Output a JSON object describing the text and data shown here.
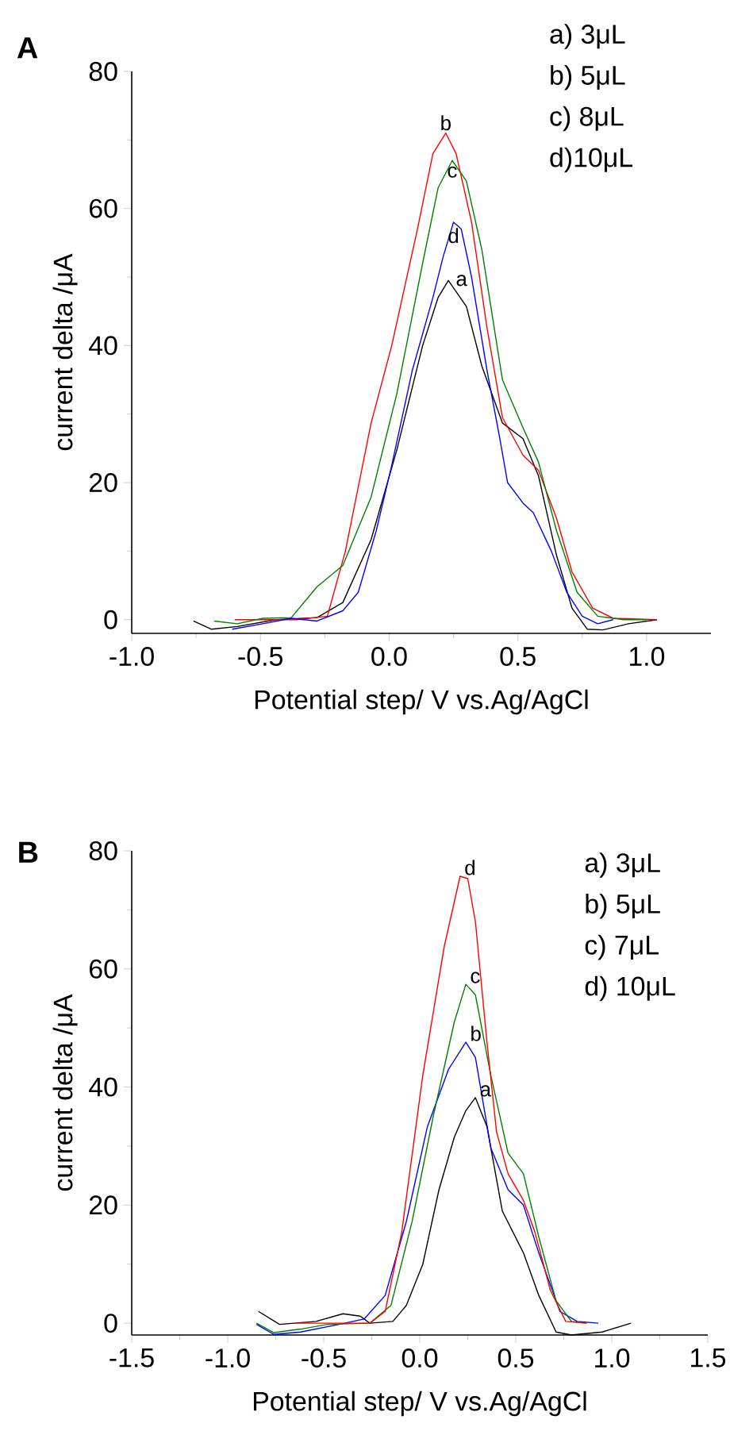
{
  "chart_data": [
    {
      "type": "line",
      "title": "A",
      "xlabel": "Potential step/ V vs.Ag/AgCl",
      "ylabel": "current delta /μA",
      "xlim": [
        -1.0,
        1.25
      ],
      "ylim": [
        -2,
        80
      ],
      "xticks": [
        {
          "value": -1.0,
          "label": "-1.0"
        },
        {
          "value": -0.5,
          "label": "-0.5"
        },
        {
          "value": 0,
          "label": "0.0"
        },
        {
          "value": 0.5,
          "label": "0.5"
        },
        {
          "value": 1.0,
          "label": "1.0"
        }
      ],
      "yticks": [
        0,
        20,
        40,
        60,
        80
      ],
      "marker": "none",
      "line_style": "solid",
      "series": [
        {
          "color": "#000000",
          "x": [
            -0.76,
            -0.69,
            -0.59,
            -0.44,
            -0.28,
            -0.18,
            -0.07,
            0.03,
            0.13,
            0.19,
            0.23,
            0.3,
            0.36,
            0.44,
            0.52,
            0.58,
            0.65,
            0.71,
            0.77,
            0.83,
            0.93,
            1.04
          ],
          "values": [
            -0.2,
            -1.4,
            -1,
            0,
            0.3,
            2.5,
            11.7,
            24.8,
            40,
            47,
            49.5,
            45.7,
            37,
            28.7,
            26.4,
            21,
            9.4,
            1.7,
            -1.4,
            -1.5,
            -0.6,
            0
          ]
        },
        {
          "color": "#ff0000",
          "x": [
            -0.6,
            -0.36,
            -0.24,
            -0.17,
            -0.07,
            0.01,
            0.11,
            0.17,
            0.22,
            0.26,
            0.32,
            0.38,
            0.44,
            0.52,
            0.58,
            0.65,
            0.71,
            0.79,
            0.87,
            1.04
          ],
          "values": [
            0,
            0,
            0.5,
            10,
            28.7,
            40,
            57,
            68,
            71,
            68,
            58,
            42.6,
            29.5,
            24,
            21.8,
            14.8,
            7,
            1.7,
            0.2,
            0
          ]
        },
        {
          "color": "#008000",
          "x": [
            -0.68,
            -0.59,
            -0.49,
            -0.38,
            -0.28,
            -0.18,
            -0.07,
            0.03,
            0.13,
            0.19,
            0.245,
            0.3,
            0.36,
            0.44,
            0.52,
            0.58,
            0.65,
            0.73,
            0.81,
            0.91,
            1.0
          ],
          "values": [
            -0.2,
            -0.6,
            0.2,
            0.3,
            4.8,
            7.9,
            17.9,
            33,
            52,
            63,
            67,
            64,
            54,
            35,
            28,
            23,
            13,
            4,
            0.5,
            0,
            0
          ]
        },
        {
          "color": "#0000ff",
          "x": [
            -0.61,
            -0.49,
            -0.38,
            -0.28,
            -0.18,
            -0.12,
            -0.05,
            0.01,
            0.09,
            0.17,
            0.21,
            0.25,
            0.28,
            0.32,
            0.38,
            0.43,
            0.46,
            0.52,
            0.56,
            0.63,
            0.69,
            0.75,
            0.81,
            0.87
          ],
          "values": [
            -1.4,
            -0.6,
            0.2,
            -0.2,
            1.3,
            4,
            13,
            22.5,
            36.4,
            47,
            53,
            58,
            57,
            50,
            36.4,
            26.4,
            20,
            17,
            15.6,
            10,
            4,
            0.5,
            -0.6,
            0
          ]
        }
      ],
      "annotations": [
        "a) 3μL",
        "b) 5μL",
        "c) 8μL",
        "d)10μL",
        {
          "text": "b",
          "x": 0.22,
          "y": 71
        },
        {
          "text": "c",
          "x": 0.245,
          "y": 67
        },
        {
          "text": "d",
          "x": 0.25,
          "y": 58
        },
        {
          "text": "a",
          "x": 0.23,
          "y": 49.5
        }
      ]
    },
    {
      "type": "line",
      "title": "B",
      "xlabel": "Potential step/ V vs.Ag/AgCl",
      "ylabel": "current delta /μA",
      "xlim": [
        -1.5,
        1.5
      ],
      "ylim": [
        -2,
        80
      ],
      "xticks": [
        {
          "value": -1.5,
          "label": "-1.5"
        },
        {
          "value": -1.0,
          "label": "-1.0"
        },
        {
          "value": -0.5,
          "label": "-0.5"
        },
        {
          "value": 0,
          "label": "0.0"
        },
        {
          "value": 0.5,
          "label": "0.5"
        },
        {
          "value": 1.0,
          "label": "1.0"
        },
        {
          "value": 1.5,
          "label": "1.5"
        }
      ],
      "yticks": [
        0,
        20,
        40,
        60,
        80
      ],
      "marker": "none",
      "line_style": "solid",
      "series": [
        {
          "color": "#000000",
          "x": [
            -0.84,
            -0.73,
            -0.54,
            -0.4,
            -0.31,
            -0.26,
            -0.14,
            -0.07,
            0.016,
            0.1,
            0.18,
            0.24,
            0.29,
            0.35,
            0.43,
            0.54,
            0.62,
            0.71,
            0.79,
            0.95,
            1.1
          ],
          "values": [
            2,
            -0.2,
            0.3,
            1.6,
            1.2,
            0,
            0.3,
            3,
            10,
            22.6,
            31.5,
            36,
            38.2,
            33.3,
            19,
            11.9,
            4.7,
            -1.5,
            -2,
            -1.5,
            0
          ]
        },
        {
          "color": "#0000ff",
          "x": [
            -0.85,
            -0.76,
            -0.62,
            -0.42,
            -0.29,
            -0.18,
            -0.07,
            0.04,
            0.15,
            0.24,
            0.29,
            0.37,
            0.46,
            0.54,
            0.62,
            0.73,
            0.82,
            0.93
          ],
          "values": [
            -0.2,
            -1.9,
            -1.5,
            -0.2,
            0.7,
            4.7,
            17.2,
            33.3,
            43,
            47.6,
            45,
            29.7,
            22.6,
            20,
            11.9,
            2,
            0.3,
            0
          ]
        },
        {
          "color": "#008000",
          "x": [
            -0.85,
            -0.76,
            -0.62,
            -0.48,
            -0.26,
            -0.15,
            -0.04,
            0.07,
            0.18,
            0.24,
            0.29,
            0.37,
            0.46,
            0.54,
            0.62,
            0.71,
            0.79,
            0.87
          ],
          "values": [
            0,
            -1.6,
            -1,
            -0.2,
            0,
            3,
            17.2,
            35,
            51,
            57.4,
            55.6,
            42,
            28.8,
            25.3,
            14.6,
            3.8,
            0.3,
            0
          ]
        },
        {
          "color": "#ff0000",
          "x": [
            -0.645,
            -0.48,
            -0.26,
            -0.18,
            -0.094,
            0.016,
            0.127,
            0.21,
            0.25,
            0.29,
            0.35,
            0.4,
            0.46,
            0.54,
            0.6,
            0.68,
            0.76,
            0.87
          ],
          "values": [
            0,
            0,
            0,
            2,
            15.4,
            42,
            63.7,
            75.7,
            75.3,
            68,
            47.6,
            32.4,
            25.3,
            20.8,
            15.4,
            5.6,
            0.3,
            0
          ]
        }
      ],
      "annotations": [
        "a) 3μL",
        "b) 5μL",
        "c) 7μL",
        "d) 10μL",
        {
          "text": "d",
          "x": 0.21,
          "y": 75.7
        },
        {
          "text": "c",
          "x": 0.24,
          "y": 57.4
        },
        {
          "text": "b",
          "x": 0.24,
          "y": 47.6
        },
        {
          "text": "a",
          "x": 0.29,
          "y": 38.2
        }
      ]
    }
  ]
}
